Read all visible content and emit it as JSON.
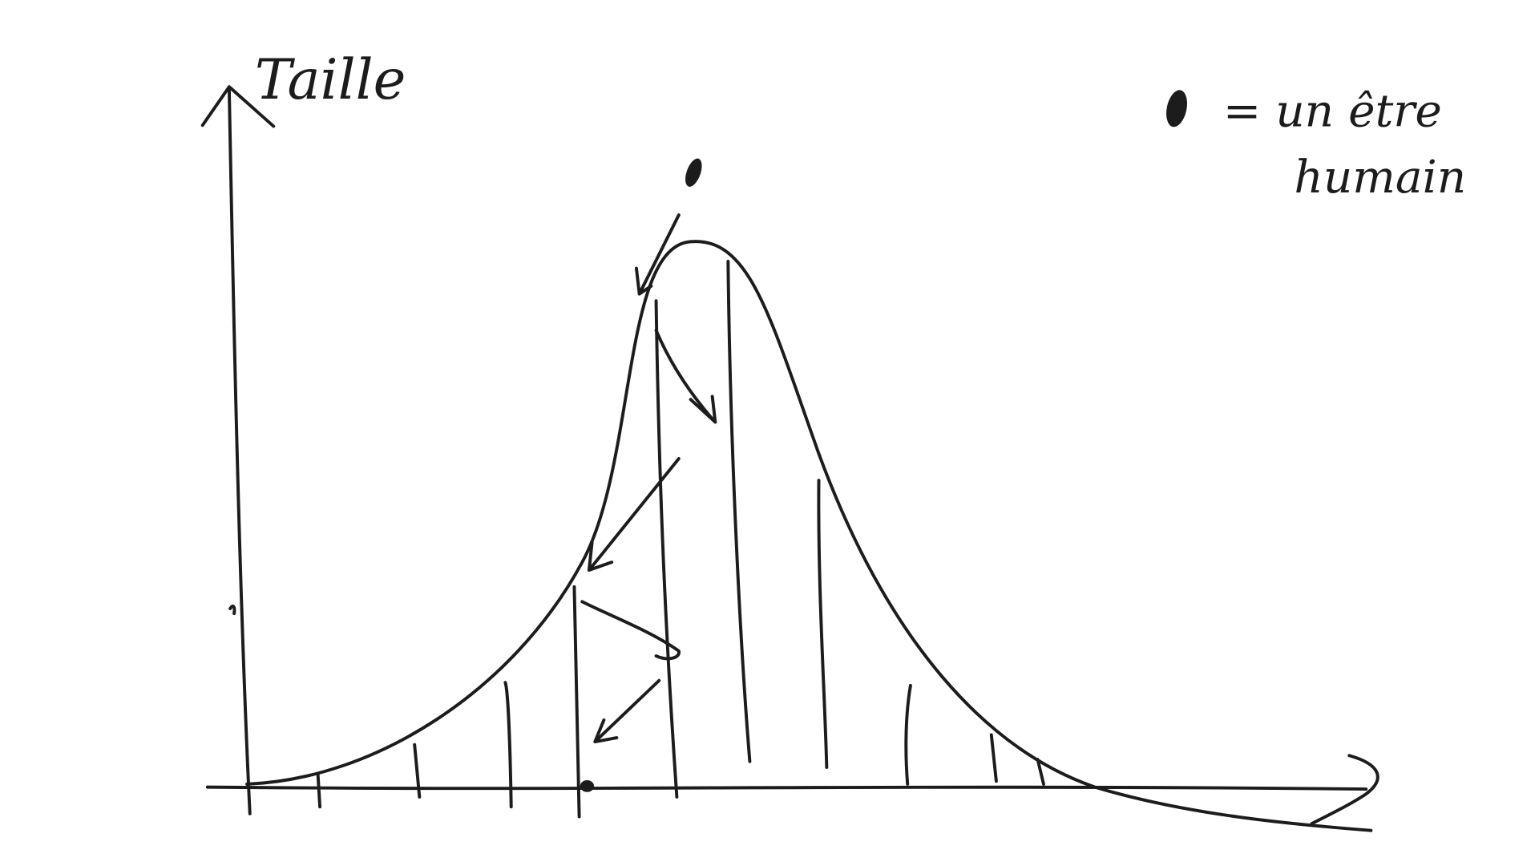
{
  "axis": {
    "y_label": "Taille"
  },
  "legend": {
    "lines": [
      "= un être",
      "humain"
    ]
  }
}
